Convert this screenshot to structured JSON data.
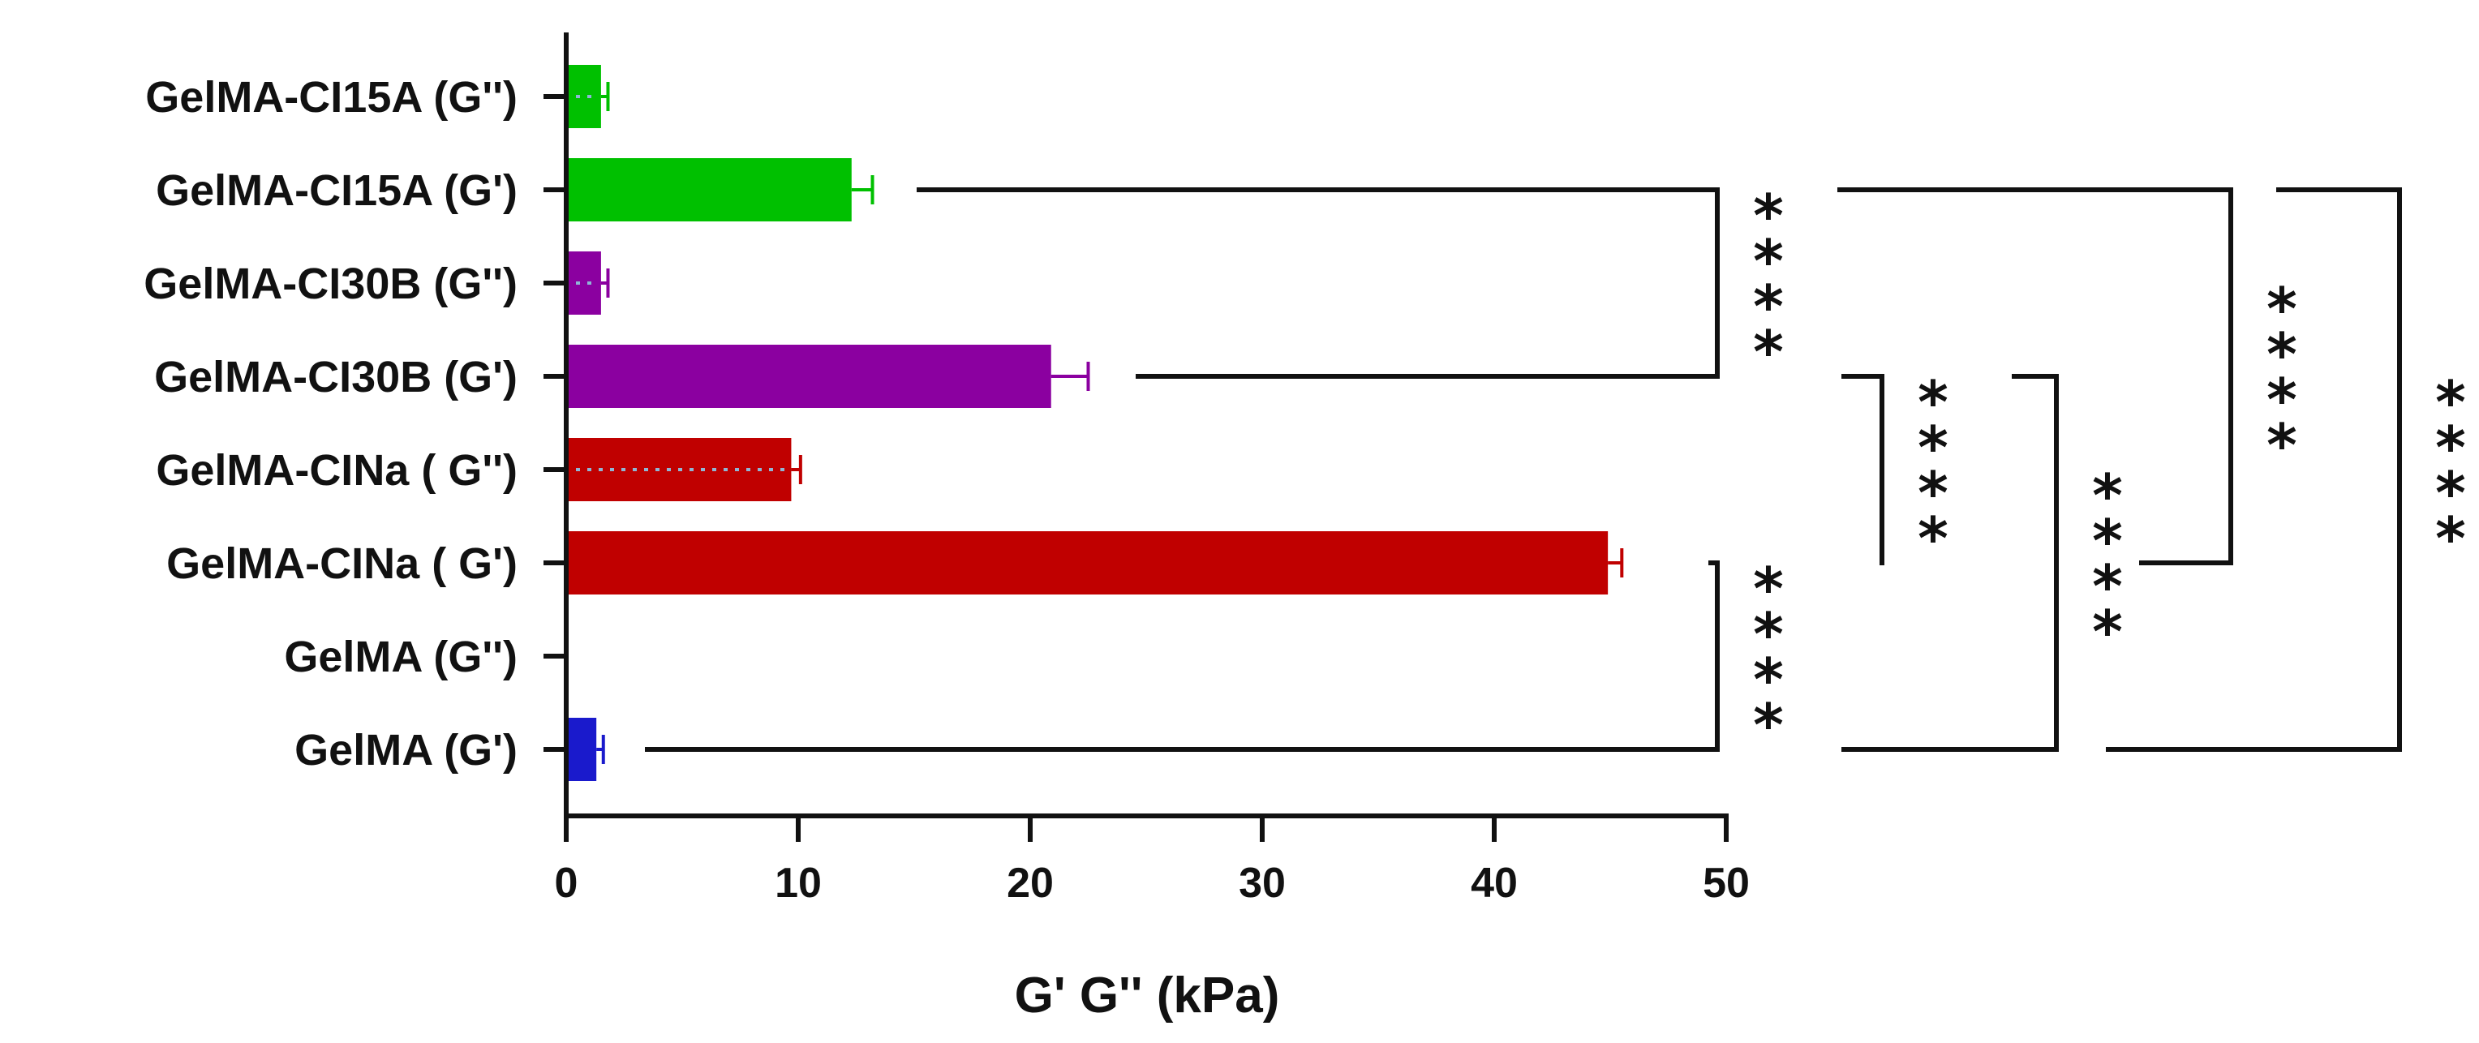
{
  "chart_data": {
    "type": "bar",
    "orientation": "horizontal",
    "title": "",
    "xlabel": "G' G'' (kPa)",
    "ylabel": "",
    "xlim": [
      0,
      50
    ],
    "xticks": [
      "0",
      "10",
      "20",
      "30",
      "40",
      "50"
    ],
    "grid": false,
    "categories": [
      "GelMA-CI15A (G'')",
      "GelMA-CI15A (G')",
      "GelMA-CI30B (G'')",
      "GelMA-CI30B (G')",
      "GelMA-CINa ( G'')",
      "GelMA-CINa ( G')",
      "GelMA (G'')",
      "GelMA (G')"
    ],
    "values": [
      1.5,
      12.3,
      1.5,
      20.9,
      9.7,
      44.9,
      0.0,
      1.3
    ],
    "errors": [
      0.3,
      0.9,
      0.3,
      1.6,
      0.4,
      0.6,
      0.0,
      0.3
    ],
    "colors": [
      "#00c000",
      "#00c000",
      "#8b00a0",
      "#8b00a0",
      "#c00000",
      "#c00000",
      "#1a1acc",
      "#1a1acc"
    ],
    "dotted": [
      true,
      false,
      true,
      false,
      true,
      false,
      true,
      false
    ],
    "significance": [
      {
        "from": "GelMA-CI15A (G')",
        "to": "GelMA-CI30B (G')",
        "label": "****"
      },
      {
        "from": "GelMA-CINa ( G')",
        "to": "GelMA (G')",
        "label": "****"
      },
      {
        "from": "GelMA-CI30B (G')",
        "to": "GelMA-CINa ( G')",
        "label": "****"
      },
      {
        "from": "GelMA-CI30B (G')",
        "to": "GelMA (G')",
        "label": "****"
      },
      {
        "from": "GelMA-CI15A (G')",
        "to": "GelMA-CINa ( G')",
        "label": "****"
      },
      {
        "from": "GelMA-CI15A (G')",
        "to": "GelMA (G')",
        "label": "****"
      }
    ]
  }
}
